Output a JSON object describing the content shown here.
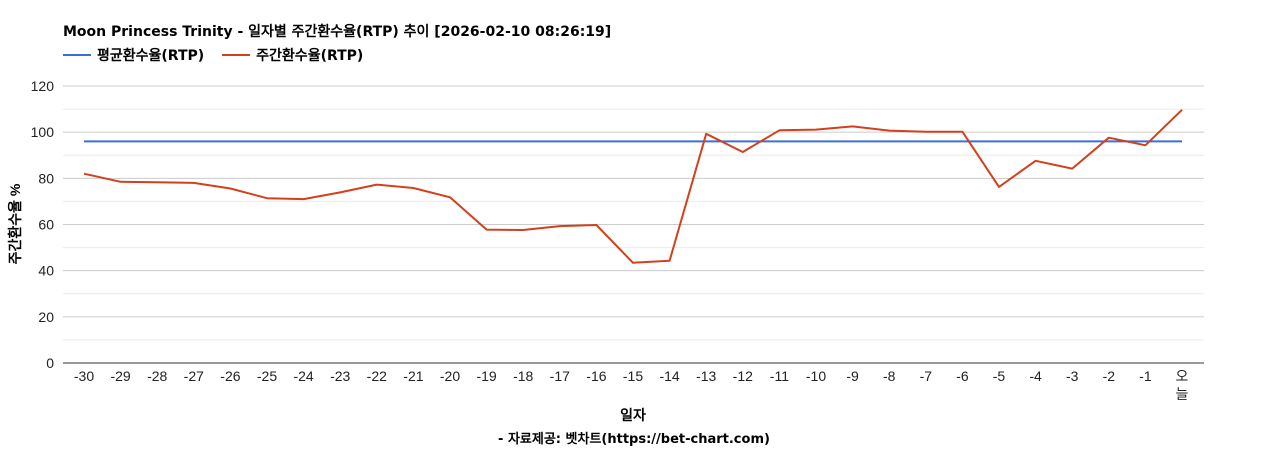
{
  "chart_data": {
    "type": "line",
    "title": "Moon Princess Trinity - 일자별 주간환수율(RTP) 추이 [2026-02-10 08:26:19]",
    "xlabel": "일자",
    "ylabel": "주간환수율 %",
    "ylim": [
      0,
      120
    ],
    "yticks": [
      0,
      20,
      40,
      60,
      80,
      100,
      120
    ],
    "grid": true,
    "legend_position": "top-left",
    "categories": [
      "-30",
      "-29",
      "-28",
      "-27",
      "-26",
      "-25",
      "-24",
      "-23",
      "-22",
      "-21",
      "-20",
      "-19",
      "-18",
      "-17",
      "-16",
      "-15",
      "-14",
      "-13",
      "-12",
      "-11",
      "-10",
      "-9",
      "-8",
      "-7",
      "-6",
      "-5",
      "-4",
      "-3",
      "-2",
      "-1",
      "오늘"
    ],
    "series": [
      {
        "name": "평균환수율(RTP)",
        "color": "#3b6fd8",
        "values": [
          96,
          96,
          96,
          96,
          96,
          96,
          96,
          96,
          96,
          96,
          96,
          96,
          96,
          96,
          96,
          96,
          96,
          96,
          96,
          96,
          96,
          96,
          96,
          96,
          96,
          96,
          96,
          96,
          96,
          96,
          96
        ]
      },
      {
        "name": "주간환수율(RTP)",
        "color": "#d2401c",
        "values": [
          82,
          78.5,
          78.3,
          78,
          75.6,
          71.4,
          71,
          73.9,
          77.3,
          75.8,
          71.8,
          57.8,
          57.6,
          59.3,
          59.8,
          43.4,
          44.3,
          99.3,
          91.4,
          100.8,
          101.1,
          102.5,
          100.7,
          100.2,
          100.2,
          76.3,
          87.6,
          84.2,
          97.6,
          94.3,
          109.7
        ]
      }
    ],
    "credit": "- 자료제공: 벳차트(https://bet-chart.com)"
  }
}
